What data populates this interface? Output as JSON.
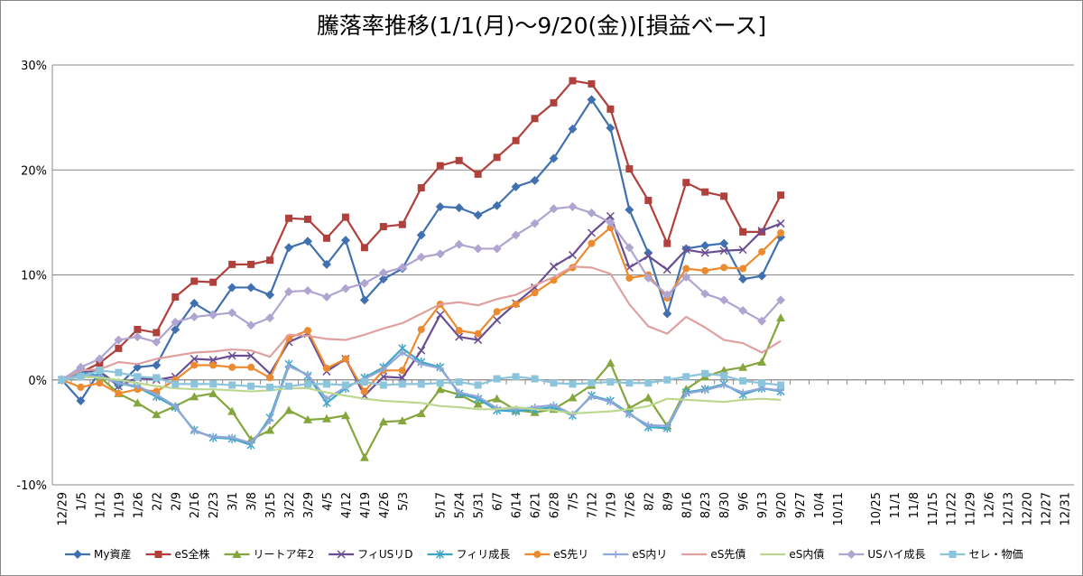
{
  "chart_data": {
    "type": "line",
    "title": "騰落率推移(1/1(月)～9/20(金))[損益ベース]",
    "categories": [
      "12/29",
      "1/5",
      "1/12",
      "1/19",
      "1/26",
      "2/2",
      "2/9",
      "2/16",
      "2/23",
      "3/1",
      "3/8",
      "3/15",
      "3/22",
      "3/29",
      "4/5",
      "4/12",
      "4/19",
      "4/26",
      "5/3",
      null,
      "5/17",
      "5/24",
      "5/31",
      "6/7",
      "6/14",
      "6/21",
      "6/28",
      "7/5",
      "7/12",
      "7/19",
      "7/26",
      "8/2",
      "8/9",
      "8/16",
      "8/23",
      "8/30",
      "9/6",
      "9/13",
      "9/20",
      "9/27",
      "10/4",
      "10/11",
      null,
      "10/25",
      "11/1",
      "11/8",
      "11/15",
      "11/22",
      "11/29",
      "12/6",
      "12/13",
      "12/20",
      "12/27",
      "12/31"
    ],
    "ylim": [
      -10,
      30
    ],
    "yticks": [
      {
        "value": -10,
        "label": "-10%"
      },
      {
        "value": 0,
        "label": "0%"
      },
      {
        "value": 10,
        "label": "10%"
      },
      {
        "value": 20,
        "label": "20%"
      },
      {
        "value": 30,
        "label": "30%"
      }
    ],
    "grid": true,
    "legend": "bottom",
    "series": [
      {
        "name": "My資産",
        "color": "#4070b0",
        "marker": "diamond",
        "values": [
          0,
          -2,
          0.8,
          -0.5,
          1.2,
          1.4,
          4.8,
          7.3,
          6.2,
          8.8,
          8.8,
          8.1,
          12.6,
          13.2,
          11.0,
          13.3,
          7.6,
          9.6,
          10.6,
          13.8,
          16.5,
          16.4,
          15.7,
          16.6,
          18.4,
          19.0,
          21.1,
          23.9,
          26.7,
          24.0,
          16.2,
          12.1,
          6.3,
          12.5,
          12.8,
          13.0,
          9.6,
          9.9,
          13.6,
          null,
          null,
          null,
          null,
          null,
          null,
          null,
          null,
          null,
          null,
          null,
          null,
          null,
          null,
          null
        ]
      },
      {
        "name": "eS全株",
        "color": "#b0403c",
        "marker": "square",
        "values": [
          0,
          0.7,
          1.6,
          3.0,
          4.8,
          4.5,
          7.9,
          9.4,
          9.3,
          11.0,
          11.0,
          11.4,
          15.4,
          15.3,
          13.5,
          15.5,
          12.6,
          14.6,
          14.8,
          18.3,
          20.4,
          20.9,
          19.6,
          21.2,
          22.8,
          24.9,
          26.4,
          28.5,
          28.2,
          25.8,
          20.1,
          17.1,
          13.0,
          18.8,
          17.9,
          17.5,
          14.1,
          14.1,
          17.6,
          null,
          null,
          null,
          null,
          null,
          null,
          null,
          null,
          null,
          null,
          null,
          null,
          null,
          null,
          null
        ]
      },
      {
        "name": "リートア年2",
        "color": "#84a63c",
        "marker": "triangle",
        "values": [
          0,
          0.5,
          0.3,
          -1.3,
          -2.2,
          -3.3,
          -2.5,
          -1.6,
          -1.3,
          -3.0,
          -5.7,
          -4.8,
          -2.9,
          -3.8,
          -3.7,
          -3.4,
          -7.4,
          -4.0,
          -3.9,
          -3.2,
          -0.9,
          -1.4,
          -2.3,
          -1.8,
          -2.9,
          -3.1,
          -2.8,
          -1.7,
          -0.5,
          1.6,
          -2.7,
          -1.7,
          -4.4,
          -0.9,
          0.3,
          0.9,
          1.2,
          1.7,
          5.9,
          null,
          null,
          null,
          null,
          null,
          null,
          null,
          null,
          null,
          null,
          null,
          null,
          null,
          null,
          null
        ]
      },
      {
        "name": "フィUSリD",
        "color": "#6a4e94",
        "marker": "x",
        "values": [
          0,
          0.8,
          0.8,
          -0.6,
          0.2,
          0,
          0.3,
          2.0,
          1.9,
          2.3,
          2.3,
          0.6,
          3.6,
          4.4,
          0.8,
          2.0,
          -1.5,
          0.3,
          0.2,
          2.8,
          6.2,
          4.1,
          3.8,
          5.7,
          7.3,
          8.8,
          10.8,
          11.9,
          14.0,
          15.6,
          10.7,
          11.8,
          10.5,
          12.4,
          12.1,
          12.3,
          12.4,
          14.2,
          14.9,
          null,
          null,
          null,
          null,
          null,
          null,
          null,
          null,
          null,
          null,
          null,
          null,
          null,
          null,
          null
        ]
      },
      {
        "name": "フィリ成長",
        "color": "#3ea6c4",
        "marker": "asterisk",
        "values": [
          0,
          0.7,
          0.4,
          -0.3,
          -0.7,
          -1.6,
          -2.6,
          -4.8,
          -5.5,
          -5.6,
          -6.2,
          -3.6,
          1.5,
          0.4,
          -2.2,
          -0.8,
          0.2,
          1.2,
          3.0,
          1.7,
          1.2,
          -1.3,
          -1.8,
          -2.9,
          -3.0,
          -2.8,
          -2.6,
          -3.4,
          -1.5,
          -2.0,
          -3.2,
          -4.5,
          -4.6,
          -1.2,
          -0.9,
          -0.4,
          -1.4,
          -0.8,
          -1.1,
          null,
          null,
          null,
          null,
          null,
          null,
          null,
          null,
          null,
          null,
          null,
          null,
          null,
          null,
          null
        ]
      },
      {
        "name": "eS先リ",
        "color": "#ec8a30",
        "marker": "circle",
        "values": [
          0,
          -0.7,
          -0.3,
          -1.3,
          -0.9,
          -1.1,
          0,
          1.4,
          1.4,
          1.2,
          1.2,
          0.2,
          4.0,
          4.7,
          1.1,
          2.0,
          -1.1,
          0.9,
          0.9,
          4.8,
          7.2,
          4.7,
          4.4,
          6.5,
          7.2,
          8.3,
          9.5,
          10.7,
          13.0,
          14.5,
          9.7,
          10.0,
          7.8,
          10.6,
          10.4,
          10.7,
          10.6,
          12.2,
          14.0,
          null,
          null,
          null,
          null,
          null,
          null,
          null,
          null,
          null,
          null,
          null,
          null,
          null,
          null,
          null
        ]
      },
      {
        "name": "eS内リ",
        "color": "#90a8d8",
        "marker": "plus",
        "values": [
          0,
          0.5,
          0.3,
          -0.3,
          -0.6,
          -1.4,
          -2.5,
          -4.9,
          -5.4,
          -5.5,
          -6.0,
          -3.9,
          1.3,
          0.5,
          -1.8,
          -0.7,
          0.1,
          1.0,
          2.6,
          1.5,
          1.1,
          -1.2,
          -1.6,
          -2.7,
          -2.8,
          -2.6,
          -2.4,
          -3.3,
          -1.6,
          -2.1,
          -3.3,
          -4.3,
          -4.4,
          -1.3,
          -1.0,
          -0.5,
          -1.2,
          -0.8,
          -1.0,
          null,
          null,
          null,
          null,
          null,
          null,
          null,
          null,
          null,
          null,
          null,
          null,
          null,
          null,
          null
        ]
      },
      {
        "name": "eS先債",
        "color": "#e0a0a0",
        "marker": "none",
        "values": [
          0,
          0.9,
          1.0,
          1.7,
          1.5,
          2.0,
          2.3,
          2.6,
          2.7,
          2.9,
          2.8,
          2.2,
          4.3,
          4.2,
          3.9,
          3.8,
          4.3,
          4.9,
          5.4,
          6.3,
          7.2,
          7.4,
          7.1,
          7.7,
          8.1,
          9.0,
          9.8,
          10.8,
          10.7,
          10.1,
          7.2,
          5.1,
          4.4,
          6.0,
          5.0,
          3.8,
          3.5,
          2.6,
          3.7,
          null,
          null,
          null,
          null,
          null,
          null,
          null,
          null,
          null,
          null,
          null,
          null,
          null,
          null,
          null
        ]
      },
      {
        "name": "eS内債",
        "color": "#bcd890",
        "marker": "none",
        "values": [
          0,
          0.3,
          0.2,
          0,
          -0.3,
          -0.6,
          -0.8,
          -0.9,
          -0.9,
          -1.0,
          -1.1,
          -1.0,
          -0.8,
          -0.8,
          -1.2,
          -1.5,
          -1.8,
          -2.0,
          -2.1,
          -2.2,
          -2.5,
          -2.6,
          -2.8,
          -2.8,
          -2.6,
          -2.8,
          -2.9,
          -3.2,
          -3.1,
          -3.0,
          -2.8,
          -2.5,
          -1.8,
          -1.9,
          -2.0,
          -2.1,
          -1.9,
          -1.8,
          -1.9,
          null,
          null,
          null,
          null,
          null,
          null,
          null,
          null,
          null,
          null,
          null,
          null,
          null,
          null,
          null
        ]
      },
      {
        "name": "USハイ成長",
        "color": "#b0a4d0",
        "marker": "diamond",
        "values": [
          0,
          1.2,
          2.0,
          3.8,
          4.1,
          3.6,
          5.5,
          6.0,
          6.2,
          6.4,
          5.2,
          5.9,
          8.4,
          8.5,
          7.9,
          8.7,
          9.2,
          10.2,
          10.7,
          11.7,
          12.0,
          12.9,
          12.5,
          12.5,
          13.8,
          14.9,
          16.3,
          16.5,
          15.9,
          15.0,
          12.6,
          9.7,
          8.1,
          9.8,
          8.2,
          7.6,
          6.6,
          5.6,
          7.6,
          null,
          null,
          null,
          null,
          null,
          null,
          null,
          null,
          null,
          null,
          null,
          null,
          null,
          null,
          null
        ]
      },
      {
        "name": "セレ・物価",
        "color": "#8cc4dc",
        "marker": "square",
        "values": [
          0,
          0.3,
          0.9,
          0.7,
          0.3,
          0.2,
          -0.4,
          -0.4,
          -0.4,
          -0.5,
          -0.6,
          -0.7,
          -0.6,
          -0.4,
          -0.4,
          -0.5,
          -0.2,
          -0.5,
          -0.4,
          -0.4,
          -0.3,
          -0.2,
          -0.5,
          0.1,
          0.3,
          0.1,
          -0.3,
          -0.4,
          -0.3,
          -0.2,
          -0.3,
          -0.3,
          0,
          0.3,
          0.6,
          0.4,
          -0.1,
          -0.3,
          -0.5,
          null,
          null,
          null,
          null,
          null,
          null,
          null,
          null,
          null,
          null,
          null,
          null,
          null,
          null,
          null
        ]
      }
    ]
  }
}
